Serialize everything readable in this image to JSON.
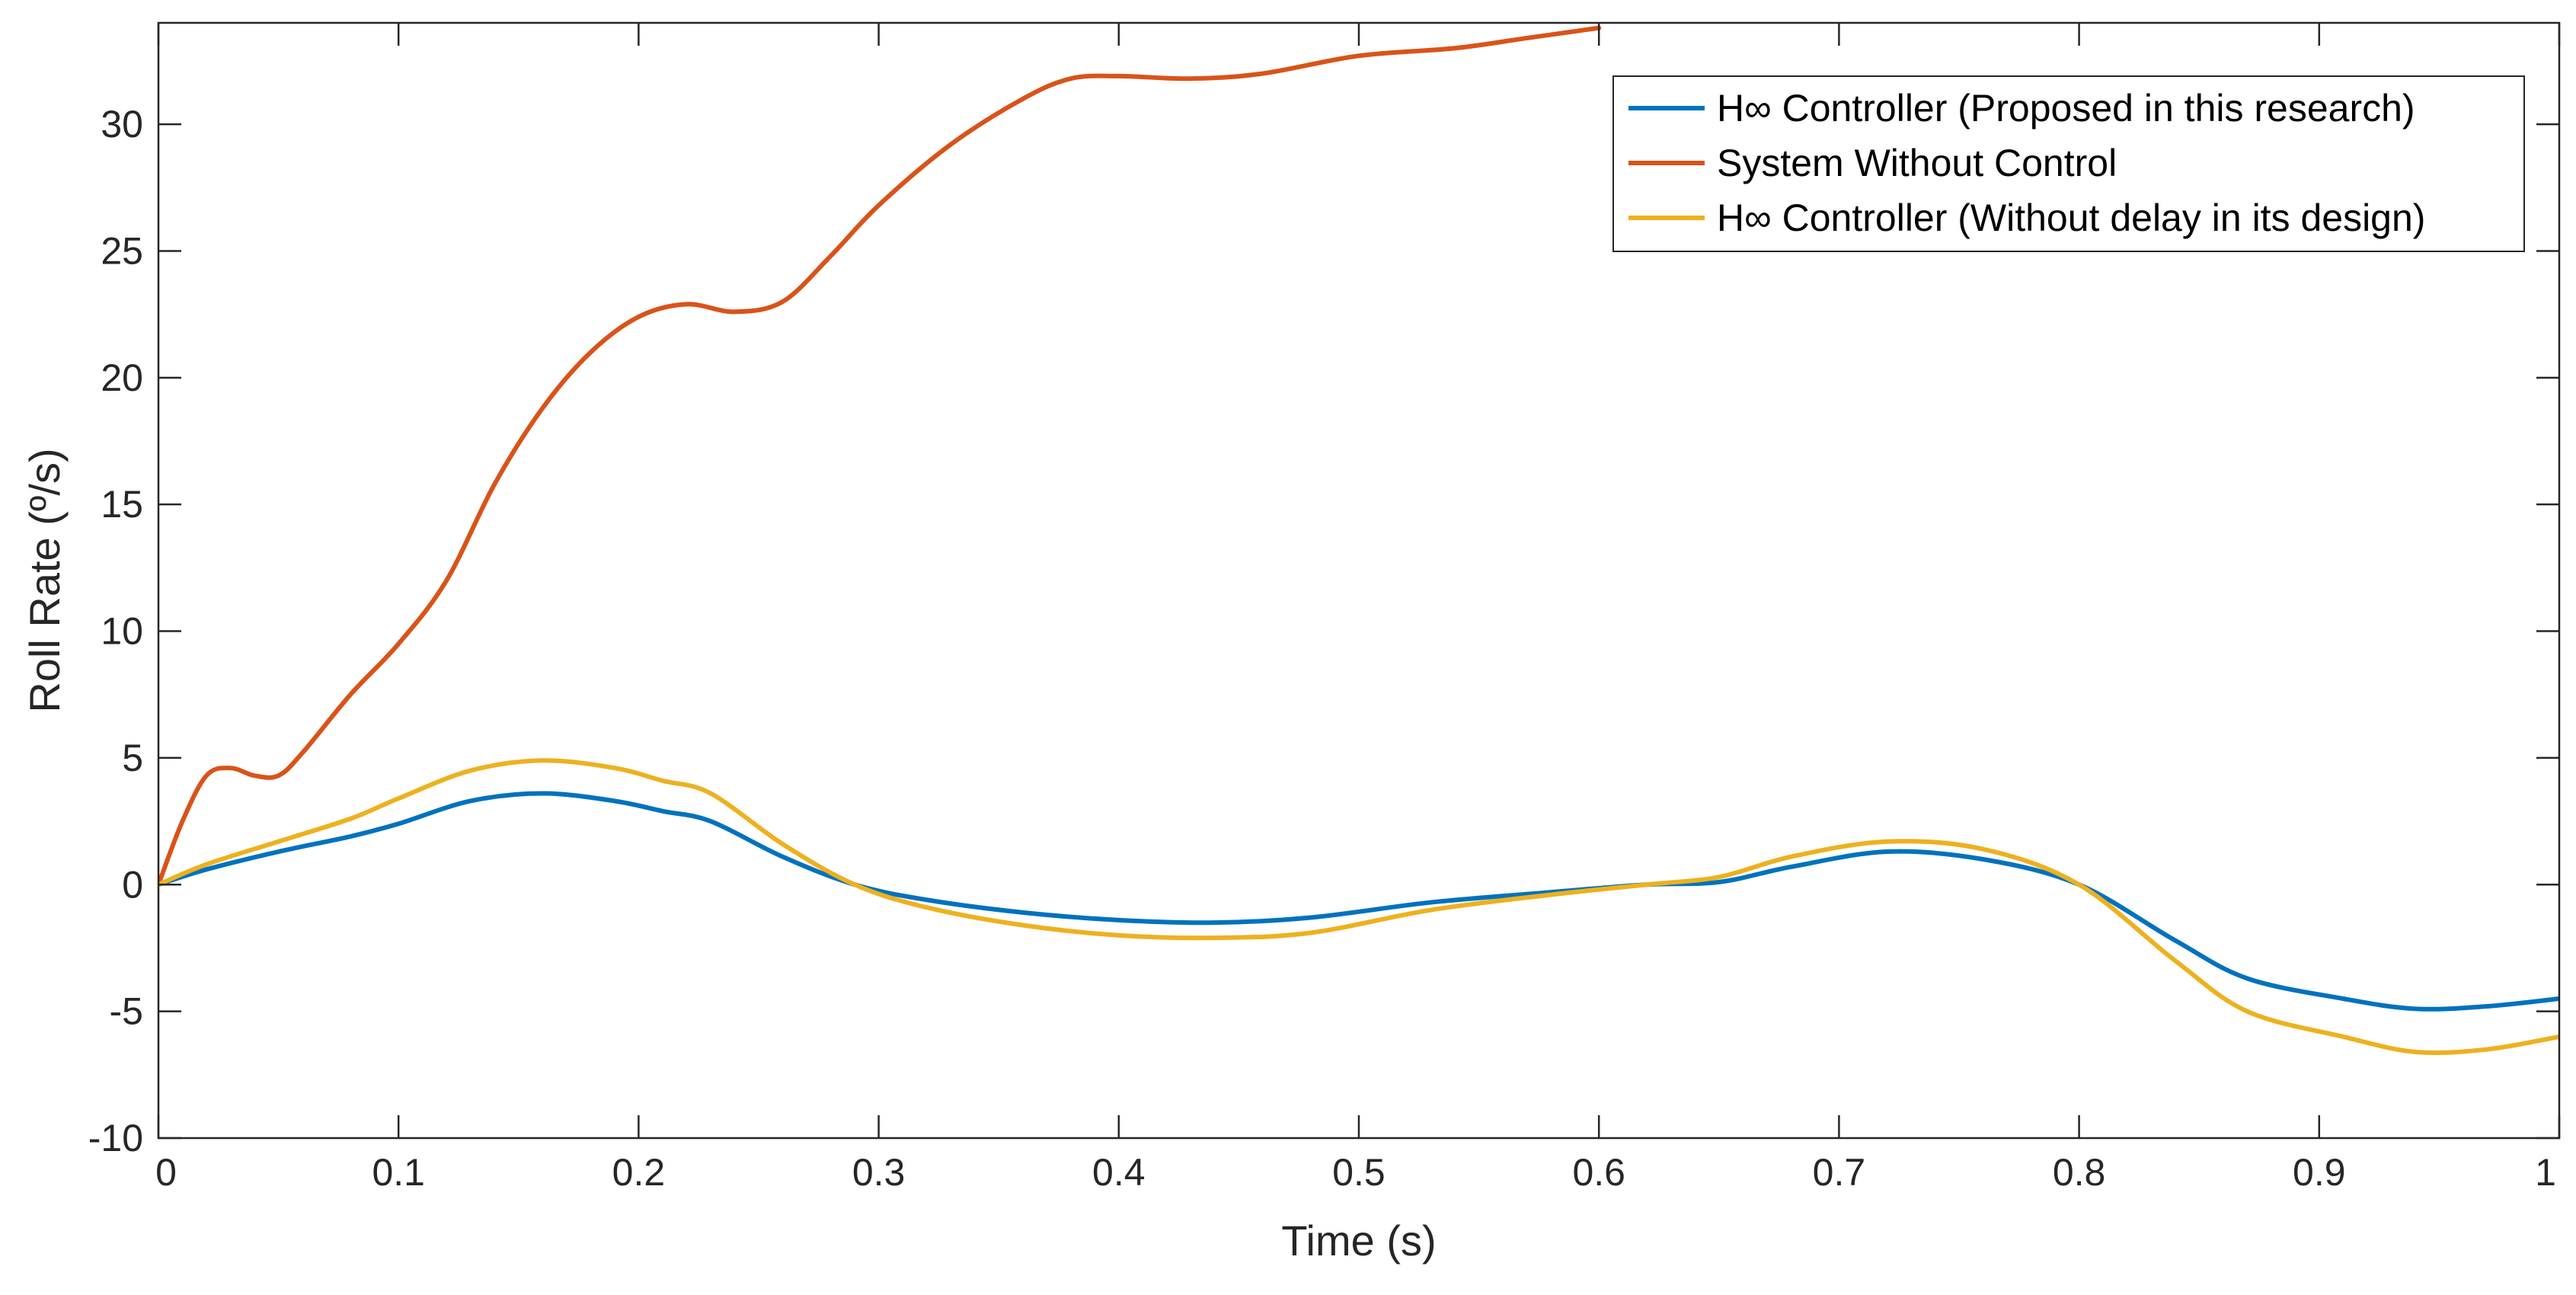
{
  "chart_data": {
    "type": "line",
    "title": "",
    "xlabel": "Time (s)",
    "ylabel": "Roll Rate (º/s)",
    "xlim": [
      0,
      1
    ],
    "ylim": [
      -10,
      34
    ],
    "xticks": [
      0,
      0.1,
      0.2,
      0.3,
      0.4,
      0.5,
      0.6,
      0.7,
      0.8,
      0.9,
      1
    ],
    "xtick_labels": [
      "0",
      "0.1",
      "0.2",
      "0.3",
      "0.4",
      "0.5",
      "0.6",
      "0.7",
      "0.8",
      "0.9",
      "1"
    ],
    "yticks": [
      -10,
      -5,
      0,
      5,
      10,
      15,
      20,
      25,
      30
    ],
    "ytick_labels": [
      "-10",
      "-5",
      "0",
      "5",
      "10",
      "15",
      "20",
      "25",
      "30"
    ],
    "grid": false,
    "legend_position": "top-right",
    "series": [
      {
        "name": "H∞ Controller (Proposed in this research)",
        "color": "#0072BD",
        "x": [
          0,
          0.02,
          0.05,
          0.08,
          0.1,
          0.13,
          0.16,
          0.19,
          0.21,
          0.23,
          0.26,
          0.29,
          0.32,
          0.36,
          0.4,
          0.44,
          0.48,
          0.53,
          0.58,
          0.62,
          0.65,
          0.68,
          0.72,
          0.76,
          0.8,
          0.84,
          0.87,
          0.91,
          0.94,
          0.97,
          1.0
        ],
        "values": [
          0,
          0.6,
          1.3,
          1.9,
          2.4,
          3.3,
          3.6,
          3.3,
          2.9,
          2.5,
          1.1,
          0,
          -0.6,
          -1.1,
          -1.4,
          -1.5,
          -1.3,
          -0.7,
          -0.3,
          0,
          0.1,
          0.7,
          1.3,
          1.0,
          0,
          -2.2,
          -3.7,
          -4.5,
          -4.9,
          -4.8,
          -4.5
        ]
      },
      {
        "name": "System Without Control",
        "color": "#D95319",
        "x": [
          0,
          0.01,
          0.02,
          0.03,
          0.04,
          0.05,
          0.06,
          0.08,
          0.1,
          0.12,
          0.14,
          0.16,
          0.18,
          0.2,
          0.22,
          0.24,
          0.26,
          0.28,
          0.3,
          0.33,
          0.36,
          0.38,
          0.4,
          0.43,
          0.46,
          0.5,
          0.54,
          0.57,
          0.6
        ],
        "values": [
          0,
          2.5,
          4.3,
          4.6,
          4.3,
          4.3,
          5.2,
          7.5,
          9.5,
          12.0,
          15.8,
          18.8,
          21.0,
          22.4,
          22.9,
          22.6,
          23.0,
          24.8,
          26.8,
          29.2,
          31.0,
          31.8,
          31.9,
          31.8,
          32.0,
          32.7,
          33.0,
          33.4,
          33.8
        ]
      },
      {
        "name": "H∞ Controller (Without delay in its design)",
        "color": "#EDB120",
        "x": [
          0,
          0.02,
          0.05,
          0.08,
          0.1,
          0.13,
          0.16,
          0.19,
          0.21,
          0.23,
          0.26,
          0.29,
          0.32,
          0.36,
          0.4,
          0.44,
          0.48,
          0.53,
          0.58,
          0.62,
          0.65,
          0.68,
          0.72,
          0.76,
          0.8,
          0.84,
          0.87,
          0.91,
          0.94,
          0.97,
          1.0
        ],
        "values": [
          0,
          0.8,
          1.7,
          2.6,
          3.4,
          4.5,
          4.9,
          4.6,
          4.1,
          3.6,
          1.6,
          0,
          -0.9,
          -1.6,
          -2.0,
          -2.1,
          -1.9,
          -1.0,
          -0.4,
          0,
          0.3,
          1.1,
          1.7,
          1.4,
          0,
          -3.0,
          -5.0,
          -6.0,
          -6.6,
          -6.5,
          -6.0
        ]
      }
    ]
  }
}
